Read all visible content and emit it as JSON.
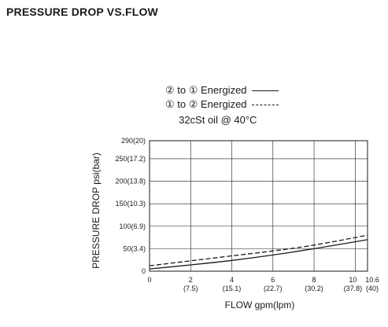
{
  "heading": "PRESSURE DROP VS.FLOW",
  "chart_data": {
    "type": "line",
    "title": "",
    "legend": [
      {
        "label": "② to ① Energized",
        "style": "solid"
      },
      {
        "label": "① to ② Energized",
        "style": "dashed"
      }
    ],
    "note": "32cSt oil @ 40°C",
    "xlabel": "FLOW   gpm(lpm)",
    "ylabel": "PRESSURE DROP  psi(bar)",
    "xlim": [
      0,
      10.6
    ],
    "ylim": [
      0,
      290
    ],
    "grid": true,
    "x_ticks": [
      {
        "value": 0,
        "label": "0",
        "sub": ""
      },
      {
        "value": 2,
        "label": "2",
        "sub": "(7.5)"
      },
      {
        "value": 4,
        "label": "4",
        "sub": "(15.1)"
      },
      {
        "value": 6,
        "label": "6",
        "sub": "(22.7)"
      },
      {
        "value": 8,
        "label": "8",
        "sub": "(30.2)"
      },
      {
        "value": 10,
        "label": "10",
        "sub": "(37.8)"
      },
      {
        "value": 10.6,
        "label": "10.6",
        "sub": "(40)"
      }
    ],
    "y_ticks": [
      {
        "value": 0,
        "label": "0"
      },
      {
        "value": 50,
        "label": "50(3.4)"
      },
      {
        "value": 100,
        "label": "100(6.9)"
      },
      {
        "value": 150,
        "label": "150(10.3)"
      },
      {
        "value": 200,
        "label": "200(13.8)"
      },
      {
        "value": 250,
        "label": "250(17.2)"
      },
      {
        "value": 290,
        "label": "290(20)"
      }
    ],
    "series": [
      {
        "name": "② to ① Energized",
        "style": "solid",
        "x": [
          0,
          2,
          4,
          6,
          8,
          10.6
        ],
        "y": [
          5,
          14,
          24,
          36,
          50,
          70
        ]
      },
      {
        "name": "① to ② Energized",
        "style": "dashed",
        "x": [
          0,
          2,
          4,
          6,
          8,
          10.6
        ],
        "y": [
          12,
          23,
          34,
          45,
          58,
          80
        ]
      }
    ]
  }
}
